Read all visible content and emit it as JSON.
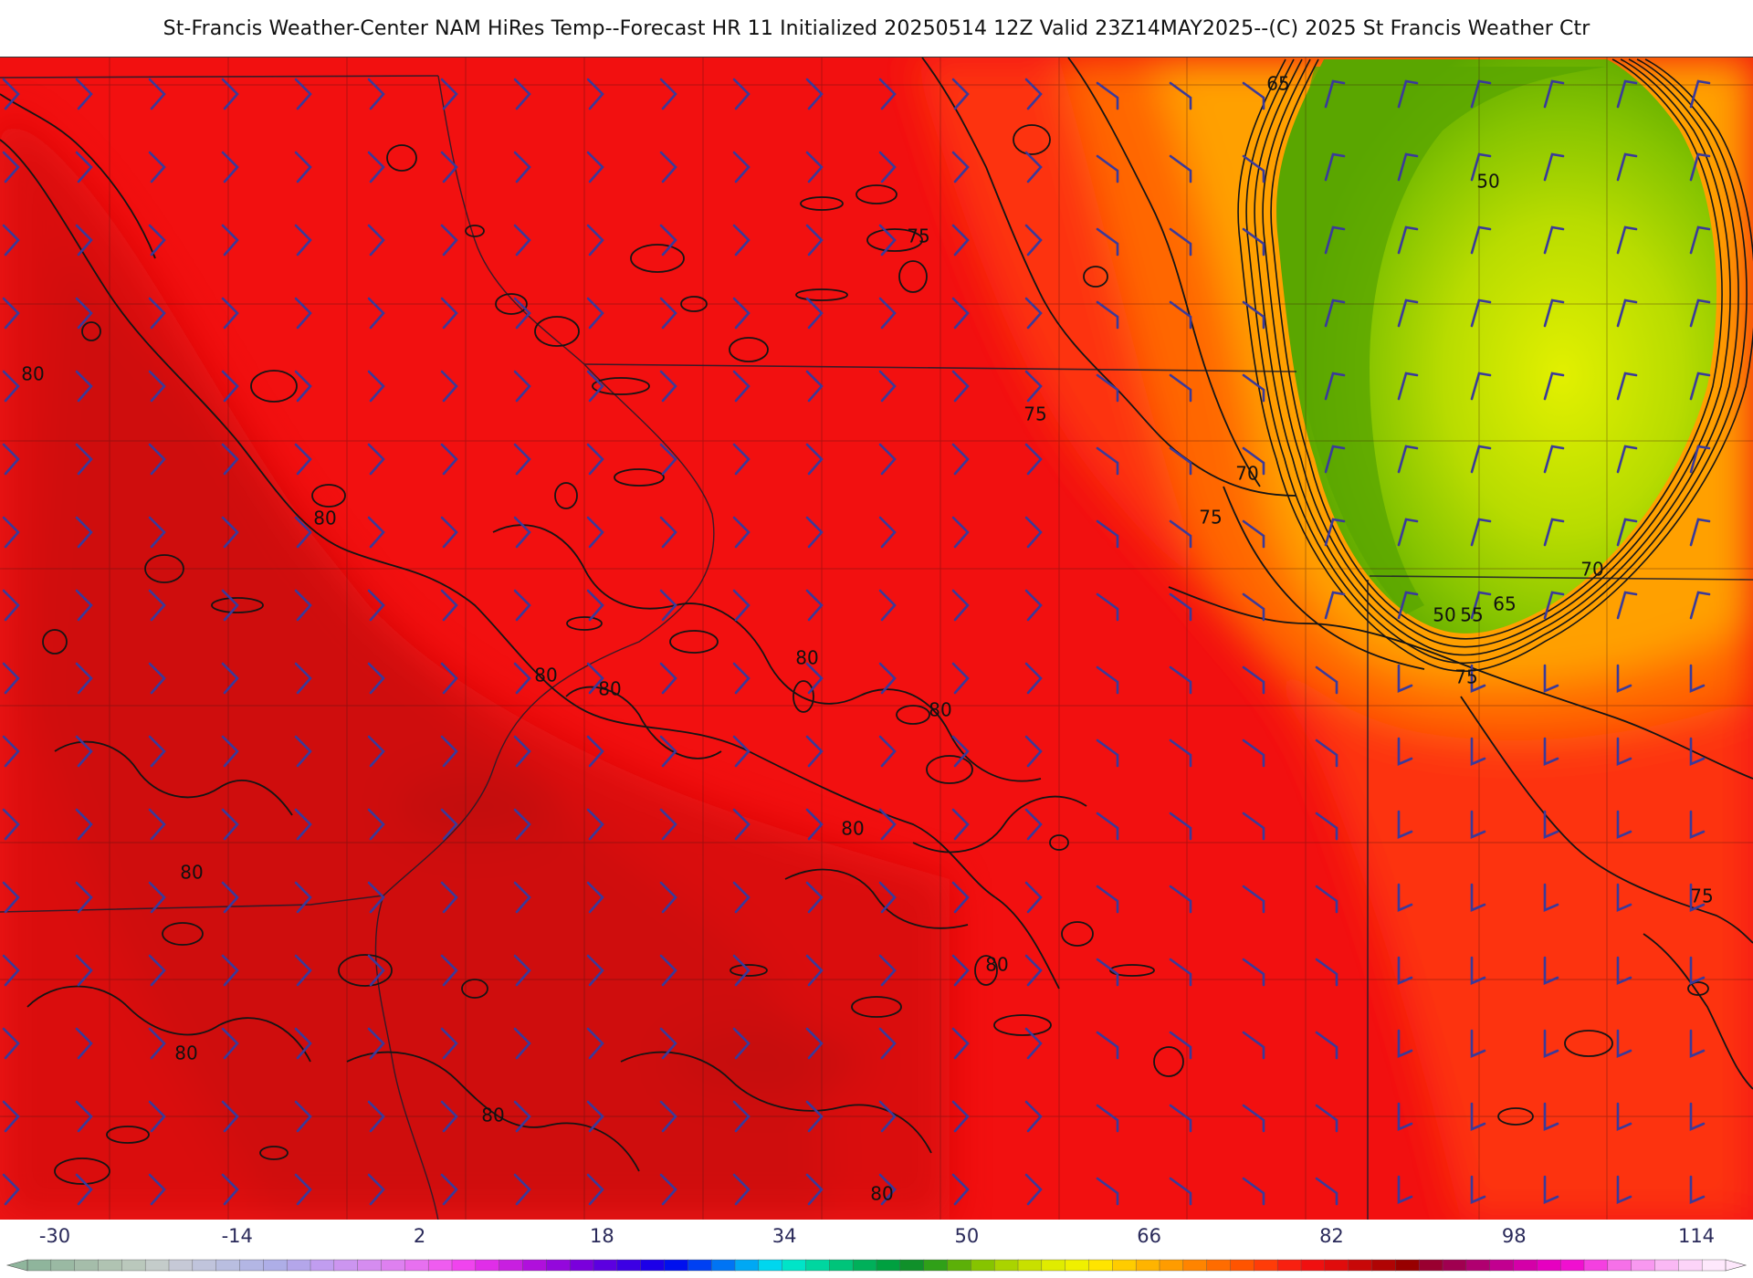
{
  "title": "St-Francis Weather-Center NAM HiRes Temp--Forecast HR 11 Initialized 20250514 12Z Valid 23Z14MAY2025--(C) 2025 St Francis Weather Ctr",
  "colorbar": {
    "ticks": [
      "-30",
      "-14",
      "2",
      "18",
      "34",
      "50",
      "66",
      "82",
      "98",
      "114"
    ],
    "min": -30,
    "max": 114,
    "step": 2
  },
  "contour_labels": [
    {
      "text": "80"
    },
    {
      "text": "80"
    },
    {
      "text": "80"
    },
    {
      "text": "80"
    },
    {
      "text": "80"
    },
    {
      "text": "80"
    },
    {
      "text": "80"
    },
    {
      "text": "80"
    },
    {
      "text": "80"
    },
    {
      "text": "80"
    },
    {
      "text": "80"
    },
    {
      "text": "80"
    },
    {
      "text": "75"
    },
    {
      "text": "75"
    },
    {
      "text": "75"
    },
    {
      "text": "75"
    },
    {
      "text": "75"
    },
    {
      "text": "70"
    },
    {
      "text": "70"
    },
    {
      "text": "65"
    },
    {
      "text": "65"
    },
    {
      "text": "55"
    },
    {
      "text": "50"
    },
    {
      "text": "50"
    }
  ],
  "colors": {
    "hot_red": "#f21010",
    "dark_red": "#d80c0c",
    "orange_red": "#ff3a08",
    "orange": "#ff7a00",
    "amber": "#ffa800",
    "green_dark": "#5aa600",
    "green_mid": "#86c400",
    "yellow_green": "#b8dc00",
    "yellow": "#e2f000",
    "wind_barb": "#3a3a9a",
    "contour": "#151515"
  }
}
